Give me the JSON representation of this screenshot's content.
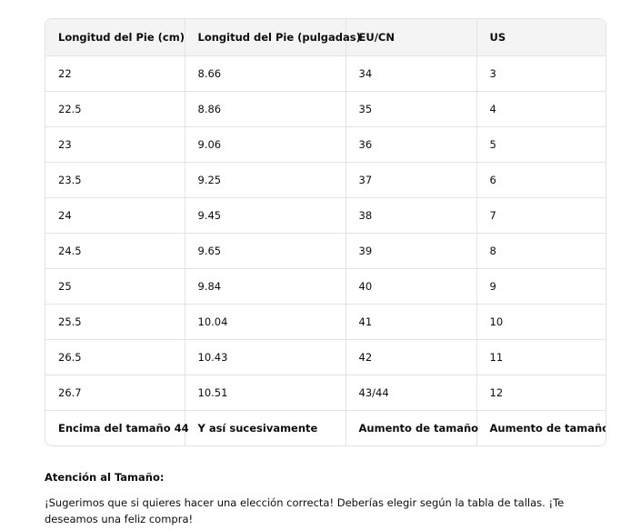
{
  "table": {
    "header": [
      "Longitud del Pie (cm)",
      "Longitud del Pie (pulgadas)",
      "EU/CN",
      "US"
    ],
    "rows": [
      [
        "22",
        "8.66",
        "34",
        "3"
      ],
      [
        "22.5",
        "8.86",
        "35",
        "4"
      ],
      [
        "23",
        "9.06",
        "36",
        "5"
      ],
      [
        "23.5",
        "9.25",
        "37",
        "6"
      ],
      [
        "24",
        "9.45",
        "38",
        "7"
      ],
      [
        "24.5",
        "9.65",
        "39",
        "8"
      ],
      [
        "25",
        "9.84",
        "40",
        "9"
      ],
      [
        "25.5",
        "10.04",
        "41",
        "10"
      ],
      [
        "26.5",
        "10.43",
        "42",
        "11"
      ],
      [
        "26.7",
        "10.51",
        "43/44",
        "12"
      ],
      [
        "Encima del tamaño 44",
        "Y así sucesivamente",
        "Aumento de tamaño",
        "Aumento de tamaño"
      ]
    ]
  },
  "note": {
    "heading": "Atención al Tamaño:",
    "text": "¡Sugerimos que si quieres hacer una elección correcta! Deberías elegir según la tabla de tallas. ¡Te deseamos una feliz compra!"
  }
}
